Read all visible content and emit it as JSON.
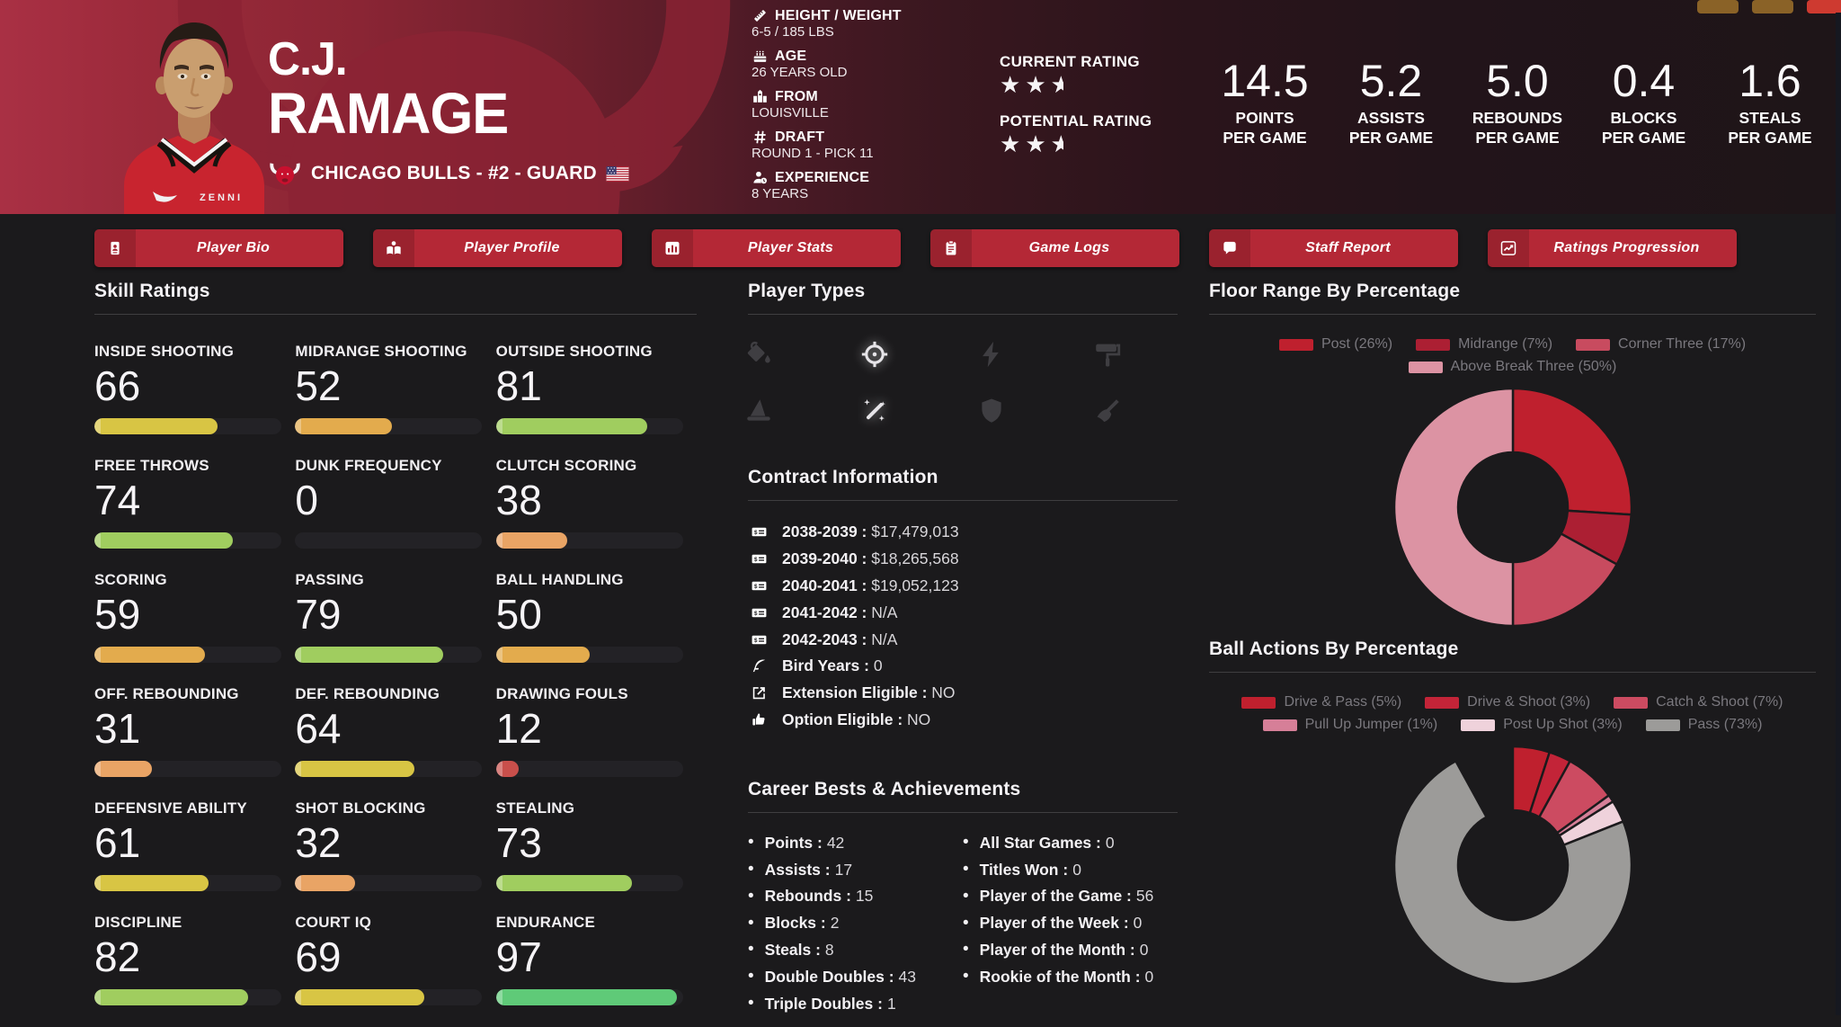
{
  "header": {
    "first_name": "C.J.",
    "last_name": "RAMAGE",
    "team_line": "CHICAGO BULLS - #2 - GUARD",
    "info": [
      {
        "icon": "ruler",
        "label": "HEIGHT / WEIGHT",
        "value": "6-5 / 185 LBS"
      },
      {
        "icon": "cake",
        "label": "AGE",
        "value": "26 YEARS OLD"
      },
      {
        "icon": "school",
        "label": "FROM",
        "value": "LOUISVILLE"
      },
      {
        "icon": "hashtag",
        "label": "DRAFT",
        "value": "ROUND 1 - PICK 11"
      },
      {
        "icon": "user-clock",
        "label": "EXPERIENCE",
        "value": "8 YEARS"
      }
    ],
    "ratings": [
      {
        "label": "CURRENT RATING",
        "stars": 2.5
      },
      {
        "label": "POTENTIAL RATING",
        "stars": 2.5
      }
    ],
    "stats": [
      {
        "value": "14.5",
        "lines": [
          "POINTS",
          "PER GAME"
        ]
      },
      {
        "value": "5.2",
        "lines": [
          "ASSISTS",
          "PER GAME"
        ]
      },
      {
        "value": "5.0",
        "lines": [
          "REBOUNDS",
          "PER GAME"
        ]
      },
      {
        "value": "0.4",
        "lines": [
          "BLOCKS",
          "PER GAME"
        ]
      },
      {
        "value": "1.6",
        "lines": [
          "STEALS",
          "PER GAME"
        ]
      }
    ],
    "corner_boxes": [
      {
        "color": "#8a6227"
      },
      {
        "color": "#8a6227"
      },
      {
        "color": "#ce3a30"
      }
    ]
  },
  "tabs": [
    {
      "icon": "address-card",
      "label": "Player Bio"
    },
    {
      "icon": "book-reader",
      "label": "Player Profile"
    },
    {
      "icon": "chart-bar",
      "label": "Player Stats"
    },
    {
      "icon": "clipboard",
      "label": "Game Logs"
    },
    {
      "icon": "comment",
      "label": "Staff Report"
    },
    {
      "icon": "chart-line",
      "label": "Ratings Progression"
    }
  ],
  "skills": {
    "title": "Skill Ratings",
    "scale": [
      {
        "min": 85,
        "color": "#5fca78"
      },
      {
        "min": 70,
        "color": "#a0cd5f"
      },
      {
        "min": 60,
        "color": "#d8c544"
      },
      {
        "min": 40,
        "color": "#e3ab4d"
      },
      {
        "min": 20,
        "color": "#e9a465"
      },
      {
        "min": 1,
        "color": "#c94f4b"
      }
    ],
    "items": [
      {
        "label": "INSIDE SHOOTING",
        "value": 66
      },
      {
        "label": "MIDRANGE SHOOTING",
        "value": 52
      },
      {
        "label": "OUTSIDE SHOOTING",
        "value": 81
      },
      {
        "label": "FREE THROWS",
        "value": 74
      },
      {
        "label": "DUNK FREQUENCY",
        "value": 0
      },
      {
        "label": "CLUTCH SCORING",
        "value": 38
      },
      {
        "label": "SCORING",
        "value": 59
      },
      {
        "label": "PASSING",
        "value": 79
      },
      {
        "label": "BALL HANDLING",
        "value": 50
      },
      {
        "label": "OFF. REBOUNDING",
        "value": 31
      },
      {
        "label": "DEF. REBOUNDING",
        "value": 64
      },
      {
        "label": "DRAWING FOULS",
        "value": 12
      },
      {
        "label": "DEFENSIVE ABILITY",
        "value": 61
      },
      {
        "label": "SHOT BLOCKING",
        "value": 32
      },
      {
        "label": "STEALING",
        "value": 73
      },
      {
        "label": "DISCIPLINE",
        "value": 82
      },
      {
        "label": "COURT IQ",
        "value": 69
      },
      {
        "label": "ENDURANCE",
        "value": 97
      }
    ]
  },
  "player_types": {
    "title": "Player Types",
    "icons": [
      {
        "name": "fill-drip",
        "active": false
      },
      {
        "name": "crosshairs",
        "active": true
      },
      {
        "name": "bolt",
        "active": false
      },
      {
        "name": "paint-roller",
        "active": false
      },
      {
        "name": "hat-wizard",
        "active": false
      },
      {
        "name": "magic-wand",
        "active": true
      },
      {
        "name": "shield",
        "active": false
      },
      {
        "name": "broom",
        "active": false
      }
    ]
  },
  "contract": {
    "title": "Contract Information",
    "rows": [
      {
        "icon": "money-check",
        "label": "2038-2039",
        "value": "$17,479,013"
      },
      {
        "icon": "money-check",
        "label": "2039-2040",
        "value": "$18,265,568"
      },
      {
        "icon": "money-check",
        "label": "2040-2041",
        "value": "$19,052,123"
      },
      {
        "icon": "money-check",
        "label": "2041-2042",
        "value": "N/A"
      },
      {
        "icon": "money-check",
        "label": "2042-2043",
        "value": "N/A"
      },
      {
        "icon": "feather",
        "label": "Bird Years",
        "value": "0"
      },
      {
        "icon": "external",
        "label": "Extension Eligible",
        "value": "NO"
      },
      {
        "icon": "thumbs-up",
        "label": "Option Eligible",
        "value": "NO"
      }
    ]
  },
  "career": {
    "title": "Career Bests & Achievements",
    "left": [
      {
        "label": "Points",
        "value": "42"
      },
      {
        "label": "Assists",
        "value": "17"
      },
      {
        "label": "Rebounds",
        "value": "15"
      },
      {
        "label": "Blocks",
        "value": "2"
      },
      {
        "label": "Steals",
        "value": "8"
      },
      {
        "label": "Double Doubles",
        "value": "43"
      },
      {
        "label": "Triple Doubles",
        "value": "1"
      }
    ],
    "right": [
      {
        "label": "All Star Games",
        "value": "0"
      },
      {
        "label": "Titles Won",
        "value": "0"
      },
      {
        "label": "Player of the Game",
        "value": "56"
      },
      {
        "label": "Player of the Week",
        "value": "0"
      },
      {
        "label": "Player of the Month",
        "value": "0"
      },
      {
        "label": "Rookie of the Month",
        "value": "0"
      }
    ]
  },
  "chart_data": [
    {
      "type": "pie",
      "donut": true,
      "title": "Floor Range By Percentage",
      "legend_position": "top",
      "labels": [
        "Post",
        "Midrange",
        "Corner Three",
        "Above Break Three"
      ],
      "values": [
        26,
        7,
        17,
        50
      ],
      "colors": [
        "#bf202e",
        "#ac1f33",
        "#c84b5f",
        "#dc93a3"
      ]
    },
    {
      "type": "pie",
      "donut": true,
      "title": "Ball Actions By Percentage",
      "legend_position": "top",
      "labels": [
        "Drive & Pass",
        "Drive & Shoot",
        "Catch & Shoot",
        "Pull Up Jumper",
        "Post Up Shot",
        "Pass"
      ],
      "values": [
        5,
        3,
        7,
        1,
        3,
        73
      ],
      "colors": [
        "#bf202e",
        "#c32438",
        "#cc4b61",
        "#d67f98",
        "#efd2db",
        "#9c9b99"
      ]
    }
  ],
  "colors": {
    "accent_red": "#b42836",
    "page_bg": "#1b1a1c",
    "bar_track": "#232226",
    "legend_text": "#7a787e",
    "header_left": "#a93044",
    "header_right": "#1e1518"
  }
}
